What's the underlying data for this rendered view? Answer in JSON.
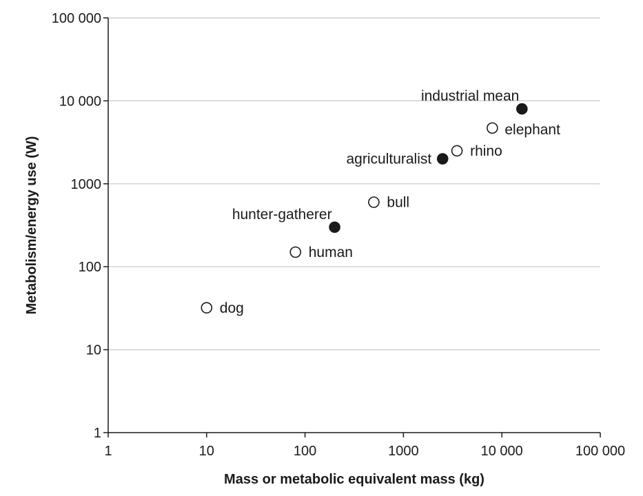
{
  "chart_data": {
    "type": "scatter",
    "title": "",
    "xlabel": "Mass or metabolic equivalent mass (kg)",
    "ylabel": "Metabolism/energy use (W)",
    "xscale": "log",
    "yscale": "log",
    "xlim": [
      1,
      100000
    ],
    "ylim": [
      1,
      100000
    ],
    "grid": "horizontal",
    "x_ticks": [
      1,
      10,
      100,
      1000,
      10000,
      100000
    ],
    "x_tick_labels": [
      "1",
      "10",
      "100",
      "1000",
      "10 000",
      "100 000"
    ],
    "y_ticks": [
      1,
      10,
      100,
      1000,
      10000,
      100000
    ],
    "y_tick_labels": [
      "1",
      "10",
      "100",
      "1000",
      "10 000",
      "100 000"
    ],
    "colors": {
      "filled": "#1a1a1a",
      "open": "#ffffff",
      "grid": "#c8c8c8"
    },
    "points": [
      {
        "label": "dog",
        "x": 10,
        "y": 32,
        "filled": false,
        "label_side": "right"
      },
      {
        "label": "human",
        "x": 80,
        "y": 150,
        "filled": false,
        "label_side": "right"
      },
      {
        "label": "hunter-gatherer",
        "x": 200,
        "y": 300,
        "filled": true,
        "label_side": "above-left"
      },
      {
        "label": "bull",
        "x": 500,
        "y": 600,
        "filled": false,
        "label_side": "right"
      },
      {
        "label": "agriculturalist",
        "x": 2500,
        "y": 2000,
        "filled": true,
        "label_side": "left"
      },
      {
        "label": "rhino",
        "x": 3500,
        "y": 2500,
        "filled": false,
        "label_side": "right"
      },
      {
        "label": "elephant",
        "x": 8000,
        "y": 4700,
        "filled": false,
        "label_side": "below-right"
      },
      {
        "label": "industrial mean",
        "x": 16000,
        "y": 8000,
        "filled": true,
        "label_side": "above-left"
      }
    ]
  }
}
